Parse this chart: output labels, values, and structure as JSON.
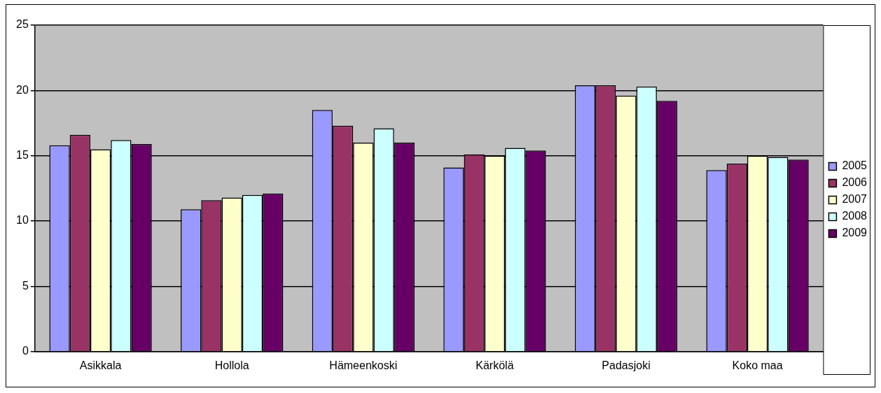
{
  "chart_data": {
    "type": "bar",
    "categories": [
      "Asikkala",
      "Hollola",
      "Hämeenkoski",
      "Kärkölä",
      "Padasjoki",
      "Koko maa"
    ],
    "series": [
      {
        "name": "2005",
        "color": "#9999ff",
        "values": [
          15.8,
          10.9,
          18.5,
          14.1,
          20.4,
          13.9
        ]
      },
      {
        "name": "2006",
        "color": "#993366",
        "values": [
          16.6,
          11.6,
          17.3,
          15.1,
          20.4,
          14.4
        ]
      },
      {
        "name": "2007",
        "color": "#ffffcc",
        "values": [
          15.5,
          11.8,
          16.0,
          15.0,
          19.6,
          15.0
        ]
      },
      {
        "name": "2008",
        "color": "#ccffff",
        "values": [
          16.2,
          12.0,
          17.1,
          15.6,
          20.3,
          14.9
        ]
      },
      {
        "name": "2009",
        "color": "#660066",
        "values": [
          15.9,
          12.1,
          16.0,
          15.4,
          19.2,
          14.7
        ]
      }
    ],
    "ylim": [
      0,
      25
    ],
    "yticks": [
      0,
      5,
      10,
      15,
      20,
      25
    ],
    "grid": "y",
    "legend": "right"
  }
}
